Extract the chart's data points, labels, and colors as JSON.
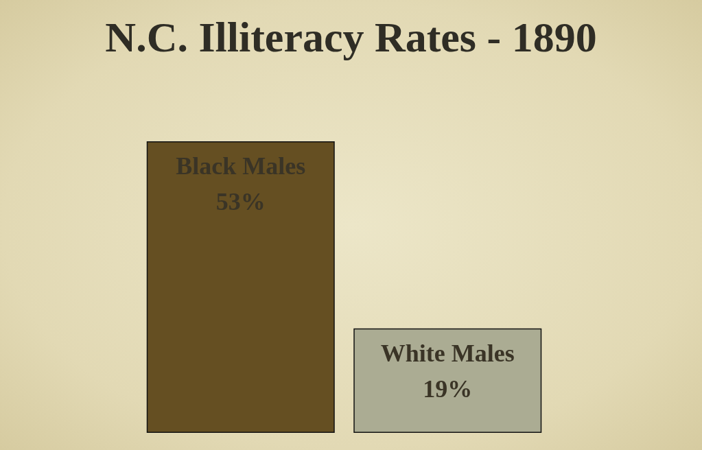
{
  "chart_data": {
    "type": "bar",
    "title": "N.C. Illiteracy Rates - 1890",
    "categories": [
      "Black Males",
      "White Males"
    ],
    "values": [
      53,
      19
    ],
    "colors": [
      "#654f22",
      "#abac93"
    ],
    "value_labels": [
      "53%",
      "19%"
    ]
  }
}
